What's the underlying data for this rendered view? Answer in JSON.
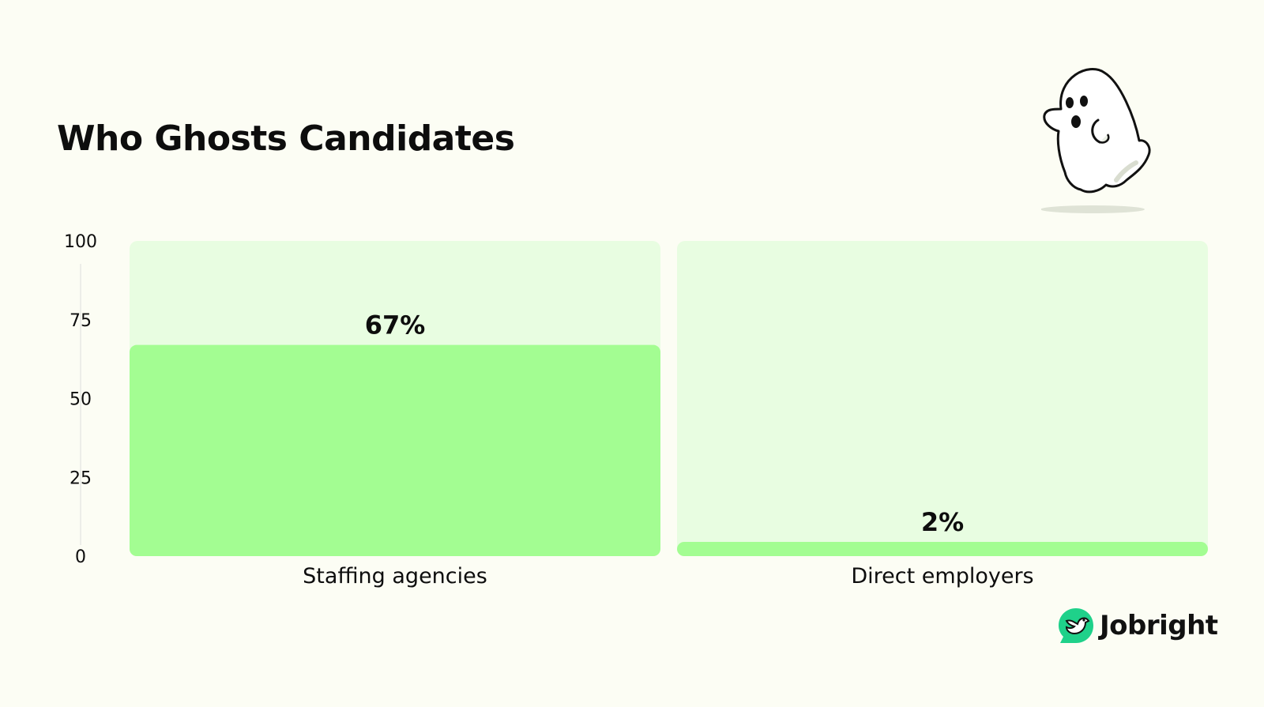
{
  "chart_data": {
    "type": "bar",
    "title": "Who Ghosts Candidates",
    "categories": [
      "Staffing agencies",
      "Direct employers"
    ],
    "values": [
      67,
      2
    ],
    "value_labels": [
      "67%",
      "2%"
    ],
    "ylim": [
      0,
      100
    ],
    "yticks": [
      "0",
      "25",
      "50",
      "75",
      "100"
    ],
    "grid": false,
    "colors": {
      "bar": "#a3fd92",
      "track": "#e8fde1",
      "axis": "#dddddd",
      "text": "#0d0d0d"
    }
  },
  "brand": {
    "name": "Jobright",
    "logo_color": "#1fd18a",
    "icon": "jobright-bird-logo"
  },
  "illustration": {
    "icon": "ghost-illustration"
  }
}
